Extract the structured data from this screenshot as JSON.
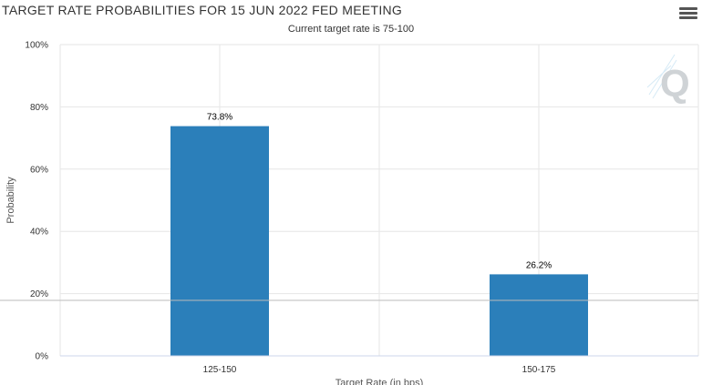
{
  "header": {
    "title": "TARGET RATE PROBABILITIES FOR 15 JUN 2022 FED MEETING",
    "subtitle": "Current target rate is 75-100",
    "menu_icon": "hamburger-menu-icon",
    "watermark_icon": "q-logo-icon"
  },
  "chart_data": {
    "type": "bar",
    "title": "TARGET RATE PROBABILITIES FOR 15 JUN 2022 FED MEETING",
    "subtitle": "Current target rate is 75-100",
    "categories": [
      "125-150",
      "150-175"
    ],
    "values": [
      73.8,
      26.2
    ],
    "data_labels": [
      "73.8%",
      "26.2%"
    ],
    "xlabel": "Target Rate (in bps)",
    "ylabel": "Probability",
    "ylim": [
      0,
      100
    ],
    "yticks": [
      "0%",
      "20%",
      "40%",
      "60%",
      "80%",
      "100%"
    ],
    "grid": true,
    "legend": "none",
    "bar_color": "#2b7fba"
  }
}
